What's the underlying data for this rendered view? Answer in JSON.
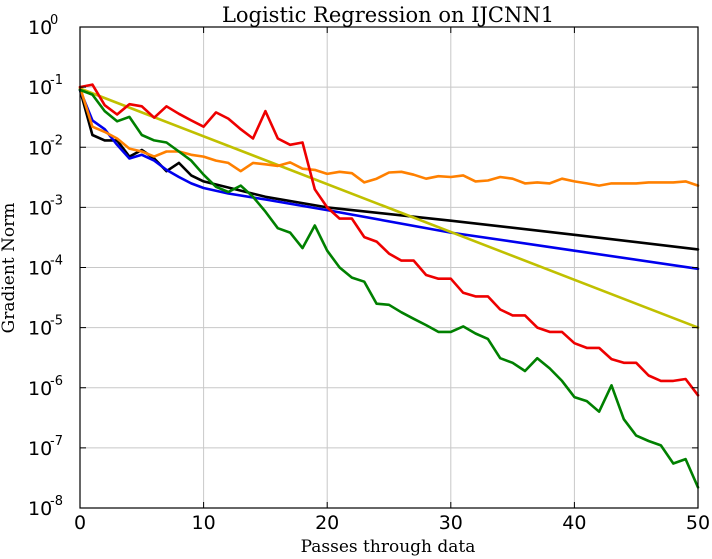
{
  "chart_data": {
    "type": "line",
    "title": "Logistic Regression on IJCNN1",
    "xlabel": "Passes through data",
    "ylabel": "Gradient Norm",
    "xlim": [
      0,
      50
    ],
    "ylim": [
      1e-08,
      1
    ],
    "yscale": "log",
    "grid": true,
    "xticks": [
      "0",
      "10",
      "20",
      "30",
      "40",
      "50"
    ],
    "yticks": [
      {
        "base": "10",
        "exp": "0"
      },
      {
        "base": "10",
        "exp": "-1"
      },
      {
        "base": "10",
        "exp": "-2"
      },
      {
        "base": "10",
        "exp": "-3"
      },
      {
        "base": "10",
        "exp": "-4"
      },
      {
        "base": "10",
        "exp": "-5"
      },
      {
        "base": "10",
        "exp": "-6"
      },
      {
        "base": "10",
        "exp": "-7"
      },
      {
        "base": "10",
        "exp": "-8"
      }
    ],
    "series": [
      {
        "name": "black",
        "color": "#000000",
        "x": [
          0,
          1,
          2,
          3,
          4,
          5,
          6,
          7,
          8,
          9,
          10,
          15,
          20,
          30,
          40,
          50
        ],
        "y": [
          0.09,
          0.016,
          0.013,
          0.013,
          0.007,
          0.009,
          0.0065,
          0.004,
          0.0055,
          0.0034,
          0.0027,
          0.0015,
          0.001,
          0.0006,
          0.00035,
          0.0002
        ]
      },
      {
        "name": "blue",
        "color": "#0000ee",
        "x": [
          0,
          1,
          2,
          3,
          4,
          5,
          6,
          7,
          8,
          9,
          10,
          12,
          15,
          20,
          30,
          40,
          50
        ],
        "y": [
          0.09,
          0.028,
          0.02,
          0.011,
          0.0065,
          0.0075,
          0.006,
          0.0042,
          0.0032,
          0.0025,
          0.0021,
          0.0017,
          0.00135,
          0.0009,
          0.00038,
          0.00019,
          9.5e-05
        ]
      },
      {
        "name": "yellow",
        "color": "#c0c000",
        "x": [
          0,
          50
        ],
        "y": [
          0.095,
          1e-05
        ]
      },
      {
        "name": "orange",
        "color": "#ff8000",
        "x": [
          0,
          1,
          2,
          3,
          4,
          5,
          6,
          7,
          8,
          9,
          10,
          11,
          12,
          13,
          14,
          15,
          16,
          17,
          18,
          19,
          20,
          21,
          22,
          23,
          24,
          25,
          26,
          27,
          28,
          29,
          30,
          31,
          32,
          33,
          34,
          35,
          36,
          37,
          38,
          39,
          40,
          41,
          42,
          43,
          44,
          45,
          46,
          47,
          48,
          49,
          50
        ],
        "y": [
          0.1,
          0.022,
          0.018,
          0.014,
          0.0095,
          0.0085,
          0.007,
          0.0085,
          0.0085,
          0.0075,
          0.007,
          0.006,
          0.0055,
          0.004,
          0.0055,
          0.0052,
          0.0049,
          0.0056,
          0.0044,
          0.0042,
          0.0036,
          0.0039,
          0.0037,
          0.0026,
          0.003,
          0.0038,
          0.0039,
          0.0035,
          0.003,
          0.0033,
          0.0032,
          0.0034,
          0.0027,
          0.0028,
          0.0032,
          0.003,
          0.0025,
          0.0026,
          0.0025,
          0.003,
          0.0027,
          0.0025,
          0.0023,
          0.0025,
          0.0025,
          0.0025,
          0.0026,
          0.0026,
          0.0026,
          0.0027,
          0.0023
        ]
      },
      {
        "name": "red",
        "color": "#ee0000",
        "x": [
          0,
          1,
          2,
          3,
          4,
          5,
          6,
          7,
          8,
          9,
          10,
          11,
          12,
          13,
          14,
          15,
          16,
          17,
          18,
          19,
          20,
          21,
          22,
          23,
          24,
          25,
          26,
          27,
          28,
          29,
          30,
          31,
          32,
          33,
          34,
          35,
          36,
          37,
          38,
          39,
          40,
          41,
          42,
          43,
          44,
          45,
          46,
          47,
          48,
          49,
          50
        ],
        "y": [
          0.1,
          0.11,
          0.05,
          0.035,
          0.052,
          0.048,
          0.031,
          0.048,
          0.036,
          0.028,
          0.022,
          0.038,
          0.03,
          0.02,
          0.014,
          0.04,
          0.014,
          0.011,
          0.012,
          0.002,
          0.001,
          0.00065,
          0.00065,
          0.00032,
          0.00027,
          0.00017,
          0.00013,
          0.00013,
          7.5e-05,
          6.5e-05,
          6.5e-05,
          3.8e-05,
          3.3e-05,
          3.3e-05,
          2e-05,
          1.6e-05,
          1.6e-05,
          1e-05,
          8.5e-06,
          8.5e-06,
          5.5e-06,
          4.6e-06,
          4.6e-06,
          3e-06,
          2.6e-06,
          2.6e-06,
          1.6e-06,
          1.3e-06,
          1.3e-06,
          1.4e-06,
          7.5e-07
        ]
      },
      {
        "name": "green",
        "color": "#008000",
        "x": [
          0,
          1,
          2,
          3,
          4,
          5,
          6,
          7,
          8,
          9,
          10,
          11,
          12,
          13,
          14,
          15,
          16,
          17,
          18,
          19,
          20,
          21,
          22,
          23,
          24,
          25,
          26,
          27,
          28,
          29,
          30,
          31,
          32,
          33,
          34,
          35,
          36,
          37,
          38,
          39,
          40,
          41,
          42,
          43,
          44,
          45,
          46,
          47,
          48,
          49,
          50
        ],
        "y": [
          0.09,
          0.075,
          0.04,
          0.027,
          0.032,
          0.016,
          0.013,
          0.012,
          0.0085,
          0.006,
          0.0035,
          0.0022,
          0.0018,
          0.0023,
          0.0015,
          0.00085,
          0.00045,
          0.00038,
          0.00021,
          0.0005,
          0.00019,
          0.0001,
          6.8e-05,
          5.8e-05,
          2.5e-05,
          2.4e-05,
          1.8e-05,
          1.4e-05,
          1.1e-05,
          8.5e-06,
          8.5e-06,
          1.05e-05,
          8e-06,
          6.5e-06,
          3.1e-06,
          2.6e-06,
          1.9e-06,
          3.1e-06,
          2.1e-06,
          1.3e-06,
          7e-07,
          6e-07,
          4e-07,
          1.1e-06,
          3e-07,
          1.6e-07,
          1.3e-07,
          1.1e-07,
          5.5e-08,
          6.5e-08,
          2.2e-08
        ]
      }
    ]
  }
}
